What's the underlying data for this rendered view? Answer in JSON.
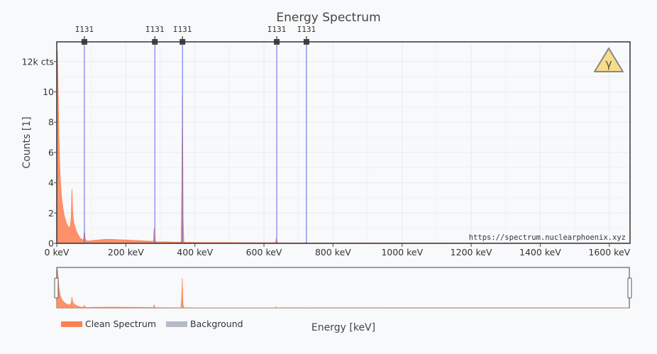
{
  "chart_data": {
    "type": "area",
    "title": "Energy Spectrum",
    "xlabel": "Energy [keV]",
    "ylabel": "Counts [1]",
    "xlim": [
      0,
      1660
    ],
    "ylim": [
      0,
      13.3
    ],
    "x_tick_values": [
      0,
      200,
      400,
      600,
      800,
      1000,
      1200,
      1400,
      1600
    ],
    "x_tick_labels": [
      "0 keV",
      "200 keV",
      "400 keV",
      "600 keV",
      "800 keV",
      "1000 keV",
      "1200 keV",
      "1400 keV",
      "1600 keV"
    ],
    "y_tick_values": [
      0,
      2,
      4,
      6,
      8,
      10,
      12
    ],
    "y_tick_labels": [
      "0",
      "2",
      "4",
      "6",
      "8",
      "10",
      "12k cts"
    ],
    "grid": true,
    "legend_position": "bottom-left",
    "watermark": "https://spectrum.nuclearphoenix.xyz",
    "series": [
      {
        "name": "Clean Spectrum",
        "color": "#ff7f50",
        "x": [
          0,
          2,
          4,
          6,
          8,
          10,
          14,
          18,
          22,
          26,
          30,
          34,
          38,
          40,
          42,
          44,
          46,
          48,
          50,
          54,
          58,
          62,
          66,
          70,
          74,
          78,
          80,
          82,
          84,
          88,
          92,
          96,
          100,
          120,
          140,
          160,
          180,
          200,
          220,
          240,
          260,
          280,
          282,
          284,
          286,
          288,
          300,
          320,
          340,
          360,
          362,
          364,
          366,
          368,
          370,
          380,
          400,
          450,
          500,
          550,
          600,
          620,
          634,
          636,
          638,
          640,
          660,
          700,
          720,
          722,
          724,
          730,
          800,
          900,
          1000,
          1100,
          1200,
          1300,
          1400,
          1500,
          1600,
          1660
        ],
        "values": [
          0.5,
          12.7,
          10.2,
          7.3,
          5.6,
          4.3,
          3.0,
          2.3,
          1.8,
          1.5,
          1.2,
          1.1,
          1.0,
          1.3,
          1.8,
          3.6,
          2.1,
          1.6,
          1.3,
          1.0,
          0.75,
          0.55,
          0.4,
          0.3,
          0.25,
          0.25,
          0.9,
          0.35,
          0.2,
          0.16,
          0.15,
          0.16,
          0.18,
          0.22,
          0.26,
          0.26,
          0.24,
          0.22,
          0.2,
          0.18,
          0.15,
          0.14,
          1.0,
          0.4,
          0.12,
          0.1,
          0.1,
          0.09,
          0.08,
          0.08,
          3.5,
          9.8,
          1.5,
          0.1,
          0.07,
          0.07,
          0.06,
          0.05,
          0.05,
          0.04,
          0.04,
          0.04,
          0.05,
          0.35,
          0.08,
          0.04,
          0.03,
          0.03,
          0.03,
          0.08,
          0.03,
          0.02,
          0.02,
          0.02,
          0.015,
          0.015,
          0.01,
          0.01,
          0.01,
          0.01,
          0.01,
          0.01
        ]
      },
      {
        "name": "Background",
        "color": "#b4bcc8",
        "x": [],
        "values": []
      }
    ],
    "peak_markers": [
      {
        "label": "I131",
        "x": 80
      },
      {
        "label": "I131",
        "x": 284
      },
      {
        "label": "I131",
        "x": 364
      },
      {
        "label": "I131",
        "x": 637
      },
      {
        "label": "I131",
        "x": 723
      }
    ],
    "peak_marker_color": "#5b67e6",
    "hazard_symbol": "γ",
    "hazard_color": "#f7dc8a"
  }
}
